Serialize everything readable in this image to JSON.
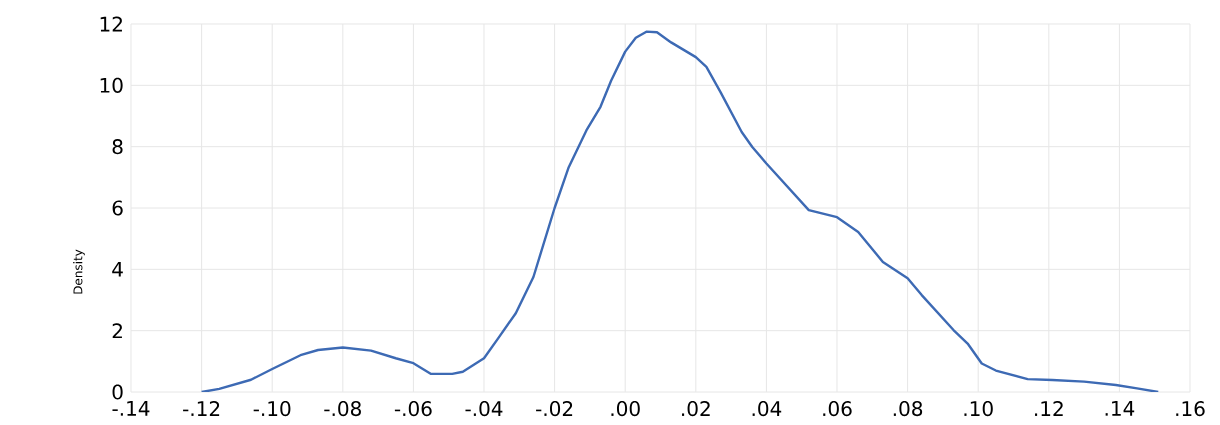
{
  "chart_data": {
    "type": "line",
    "ylabel": "Density",
    "x": [
      -0.12,
      -0.115,
      -0.106,
      -0.1,
      -0.092,
      -0.087,
      -0.08,
      -0.072,
      -0.065,
      -0.06,
      -0.055,
      -0.049,
      -0.046,
      -0.04,
      -0.036,
      -0.031,
      -0.026,
      -0.02,
      -0.016,
      -0.011,
      -0.007,
      -0.004,
      0.0,
      0.003,
      0.006,
      0.009,
      0.013,
      0.02,
      0.023,
      0.027,
      0.033,
      0.036,
      0.04,
      0.046,
      0.052,
      0.06,
      0.066,
      0.073,
      0.08,
      0.084,
      0.093,
      0.097,
      0.101,
      0.105,
      0.114,
      0.121,
      0.13,
      0.139,
      0.145,
      0.151
    ],
    "series": [
      {
        "color": "#3d6ab4",
        "values": [
          0.0,
          0.1,
          0.4,
          0.75,
          1.2,
          1.37,
          1.45,
          1.35,
          1.1,
          0.94,
          0.59,
          0.59,
          0.66,
          1.1,
          1.75,
          2.57,
          3.75,
          6.0,
          7.33,
          8.53,
          9.3,
          10.15,
          11.1,
          11.55,
          11.75,
          11.73,
          11.4,
          10.92,
          10.6,
          9.78,
          8.48,
          7.99,
          7.45,
          6.69,
          5.93,
          5.7,
          5.22,
          4.24,
          3.71,
          3.16,
          2.02,
          1.58,
          0.93,
          0.7,
          0.42,
          0.39,
          0.34,
          0.23,
          0.12,
          0.0
        ]
      }
    ],
    "xlim": [
      -0.14,
      0.16
    ],
    "xticks": [
      {
        "value": -0.14,
        "label": "-.14"
      },
      {
        "value": -0.12,
        "label": "-.12"
      },
      {
        "value": -0.1,
        "label": "-.10"
      },
      {
        "value": -0.08,
        "label": "-.08"
      },
      {
        "value": -0.06,
        "label": "-.06"
      },
      {
        "value": -0.04,
        "label": "-.04"
      },
      {
        "value": -0.02,
        "label": "-.02"
      },
      {
        "value": 0,
        "label": ".00"
      },
      {
        "value": 0.02,
        "label": ".02"
      },
      {
        "value": 0.04,
        "label": ".04"
      },
      {
        "value": 0.06,
        "label": ".06"
      },
      {
        "value": 0.08,
        "label": ".08"
      },
      {
        "value": 0.1,
        "label": ".10"
      },
      {
        "value": 0.12,
        "label": ".12"
      },
      {
        "value": 0.14,
        "label": ".14"
      },
      {
        "value": 0.16,
        "label": ".16"
      }
    ],
    "ylim": [
      0,
      12
    ],
    "yticks": [
      0,
      2,
      4,
      6,
      8,
      10,
      12
    ],
    "grid": true
  }
}
